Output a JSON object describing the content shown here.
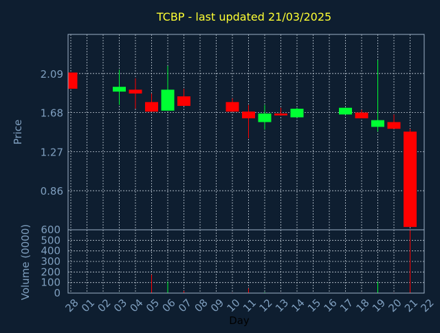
{
  "colors": {
    "background": "#0e1e30",
    "title": "#ffff33",
    "axis_text": "#7f9fbf",
    "frame": "#9fb3c8",
    "grid": "#c8d2dc",
    "up": "#00ff33",
    "down": "#ff0000"
  },
  "chart_data": [
    {
      "type": "candlestick",
      "title": "TCBP - last updated 21/03/2025",
      "ylabel": "Price",
      "xlabel": "",
      "ylim": [
        0.45,
        2.5
      ],
      "yticks": [
        "2.09",
        "1.68",
        "1.27",
        "0.86"
      ],
      "ytick_values": [
        2.09,
        1.68,
        1.27,
        0.86
      ],
      "grid": true,
      "x_tick_labels": [
        "28",
        "01",
        "02",
        "03",
        "04",
        "05",
        "06",
        "07",
        "08",
        "09",
        "10",
        "11",
        "12",
        "13",
        "14",
        "15",
        "16",
        "17",
        "18",
        "19",
        "20",
        "21",
        "22"
      ],
      "candles": [
        {
          "x": "28",
          "open": 2.1,
          "close": 1.93,
          "high": 2.1,
          "low": 1.93
        },
        {
          "x": "03",
          "open": 1.9,
          "close": 1.95,
          "high": 2.13,
          "low": 1.76
        },
        {
          "x": "04",
          "open": 1.92,
          "close": 1.88,
          "high": 2.04,
          "low": 1.72
        },
        {
          "x": "05",
          "open": 1.79,
          "close": 1.69,
          "high": 1.88,
          "low": 1.69
        },
        {
          "x": "06",
          "open": 1.7,
          "close": 1.92,
          "high": 2.17,
          "low": 1.7
        },
        {
          "x": "07",
          "open": 1.85,
          "close": 1.75,
          "high": 1.93,
          "low": 1.75
        },
        {
          "x": "10",
          "open": 1.79,
          "close": 1.69,
          "high": 1.83,
          "low": 1.69
        },
        {
          "x": "11",
          "open": 1.69,
          "close": 1.62,
          "high": 1.76,
          "low": 1.41
        },
        {
          "x": "12",
          "open": 1.58,
          "close": 1.67,
          "high": 1.76,
          "low": 1.5
        },
        {
          "x": "13",
          "open": 1.67,
          "close": 1.65,
          "high": 1.73,
          "low": 1.65
        },
        {
          "x": "14",
          "open": 1.63,
          "close": 1.72,
          "high": 1.73,
          "low": 1.63
        },
        {
          "x": "17",
          "open": 1.66,
          "close": 1.73,
          "high": 1.73,
          "low": 1.66
        },
        {
          "x": "18",
          "open": 1.68,
          "close": 1.62,
          "high": 1.71,
          "low": 1.62
        },
        {
          "x": "19",
          "open": 1.53,
          "close": 1.6,
          "high": 2.23,
          "low": 1.48
        },
        {
          "x": "20",
          "open": 1.58,
          "close": 1.51,
          "high": 1.66,
          "low": 1.51
        },
        {
          "x": "21",
          "open": 1.48,
          "close": 0.48,
          "high": 1.51,
          "low": 0.48
        }
      ]
    },
    {
      "type": "bar",
      "ylabel": "Volume (0000)",
      "xlabel": "Day",
      "ylim": [
        0,
        600
      ],
      "yticks": [
        "600",
        "500",
        "400",
        "300",
        "200",
        "100",
        "0"
      ],
      "ytick_values": [
        600,
        500,
        400,
        300,
        200,
        100,
        0
      ],
      "grid": true,
      "x_tick_labels": [
        "28",
        "01",
        "02",
        "03",
        "04",
        "05",
        "06",
        "07",
        "08",
        "09",
        "10",
        "11",
        "12",
        "13",
        "14",
        "15",
        "16",
        "17",
        "18",
        "19",
        "20",
        "21",
        "22"
      ],
      "bars": [
        {
          "x": "28",
          "value": 1,
          "direction": "down"
        },
        {
          "x": "03",
          "value": 4,
          "direction": "up"
        },
        {
          "x": "04",
          "value": 3,
          "direction": "down"
        },
        {
          "x": "05",
          "value": 175,
          "direction": "down"
        },
        {
          "x": "06",
          "value": 110,
          "direction": "up"
        },
        {
          "x": "07",
          "value": 20,
          "direction": "down"
        },
        {
          "x": "10",
          "value": 5,
          "direction": "down"
        },
        {
          "x": "11",
          "value": 45,
          "direction": "down"
        },
        {
          "x": "12",
          "value": 8,
          "direction": "up"
        },
        {
          "x": "13",
          "value": 4,
          "direction": "down"
        },
        {
          "x": "14",
          "value": 3,
          "direction": "up"
        },
        {
          "x": "17",
          "value": 3,
          "direction": "up"
        },
        {
          "x": "18",
          "value": 4,
          "direction": "down"
        },
        {
          "x": "19",
          "value": 110,
          "direction": "up"
        },
        {
          "x": "20",
          "value": 5,
          "direction": "down"
        },
        {
          "x": "21",
          "value": 600,
          "direction": "down"
        }
      ]
    }
  ]
}
